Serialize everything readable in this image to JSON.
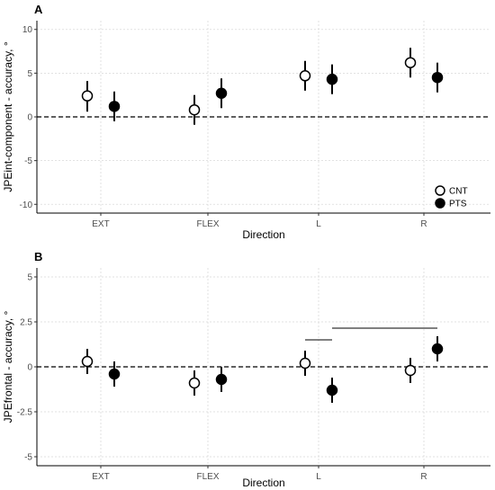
{
  "chart_data": [
    {
      "panel": "A",
      "type": "scatter",
      "xlabel": "Direction",
      "ylabel": "JPEint-component - accuracy, °",
      "categories": [
        "EXT",
        "FLEX",
        "L",
        "R"
      ],
      "ylim": [
        -11,
        11
      ],
      "yticks": [
        -10,
        -5,
        0,
        5,
        10
      ],
      "reference_line": 0,
      "grid": true,
      "legend": {
        "placement": "bottom-right",
        "entries": [
          "CNT",
          "PTS"
        ]
      },
      "series": [
        {
          "name": "CNT",
          "fill": "#ffffff",
          "values": [
            2.4,
            0.8,
            4.7,
            6.2
          ],
          "lower": [
            0.6,
            -0.9,
            3.0,
            4.5
          ],
          "upper": [
            4.1,
            2.5,
            6.4,
            7.9
          ]
        },
        {
          "name": "PTS",
          "fill": "#000000",
          "values": [
            1.2,
            2.7,
            4.3,
            4.5
          ],
          "lower": [
            -0.5,
            1.0,
            2.6,
            2.8
          ],
          "upper": [
            2.9,
            4.4,
            6.0,
            6.2
          ]
        }
      ]
    },
    {
      "panel": "B",
      "type": "scatter",
      "xlabel": "Direction",
      "ylabel": "JPEfrontal - accuracy, °",
      "categories": [
        "EXT",
        "FLEX",
        "L",
        "R"
      ],
      "ylim": [
        -5.5,
        5.5
      ],
      "yticks": [
        -5,
        -2.5,
        0,
        2.5,
        5
      ],
      "ytick_labels": [
        "-5",
        "-2.5",
        "0",
        "2.5",
        "5"
      ],
      "reference_line": 0,
      "grid": true,
      "series": [
        {
          "name": "CNT",
          "fill": "#ffffff",
          "values": [
            0.3,
            -0.9,
            0.2,
            -0.2
          ],
          "lower": [
            -0.4,
            -1.6,
            -0.5,
            -0.9
          ],
          "upper": [
            1.0,
            -0.2,
            0.9,
            0.5
          ]
        },
        {
          "name": "PTS",
          "fill": "#000000",
          "values": [
            -0.4,
            -0.7,
            -1.3,
            1.0
          ],
          "lower": [
            -1.1,
            -1.4,
            -2.0,
            0.3
          ],
          "upper": [
            0.3,
            0.0,
            -0.6,
            1.7
          ]
        }
      ],
      "significance_brackets": [
        {
          "from": {
            "category": "L",
            "series": "CNT"
          },
          "to": {
            "category": "L",
            "series": "PTS"
          },
          "y": 1.5
        },
        {
          "from": {
            "category": "L",
            "series": "PTS"
          },
          "to": {
            "category": "R",
            "series": "PTS"
          },
          "y": 2.15
        }
      ]
    }
  ]
}
